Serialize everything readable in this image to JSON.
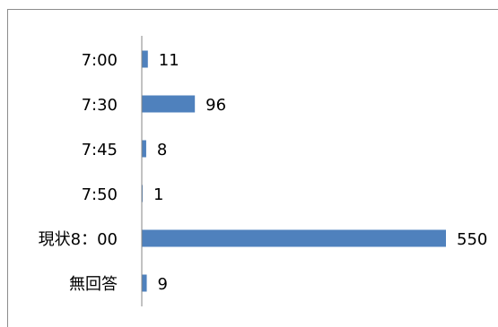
{
  "chart_data": {
    "type": "bar",
    "orientation": "horizontal",
    "categories": [
      "7:00",
      "7:30",
      "7:45",
      "7:50",
      "現状8：00",
      "無回答"
    ],
    "values": [
      11,
      96,
      8,
      1,
      550,
      9
    ],
    "data_labels": [
      "11",
      "96",
      "8",
      "1",
      "550",
      "9"
    ],
    "title": "",
    "xlabel": "",
    "ylabel": "",
    "xlim": [
      0,
      550
    ],
    "grid": false,
    "legend": "none",
    "bar_color": "#4f81bd",
    "axis_color": "#868686",
    "frame_color": "#8c8c8c"
  }
}
